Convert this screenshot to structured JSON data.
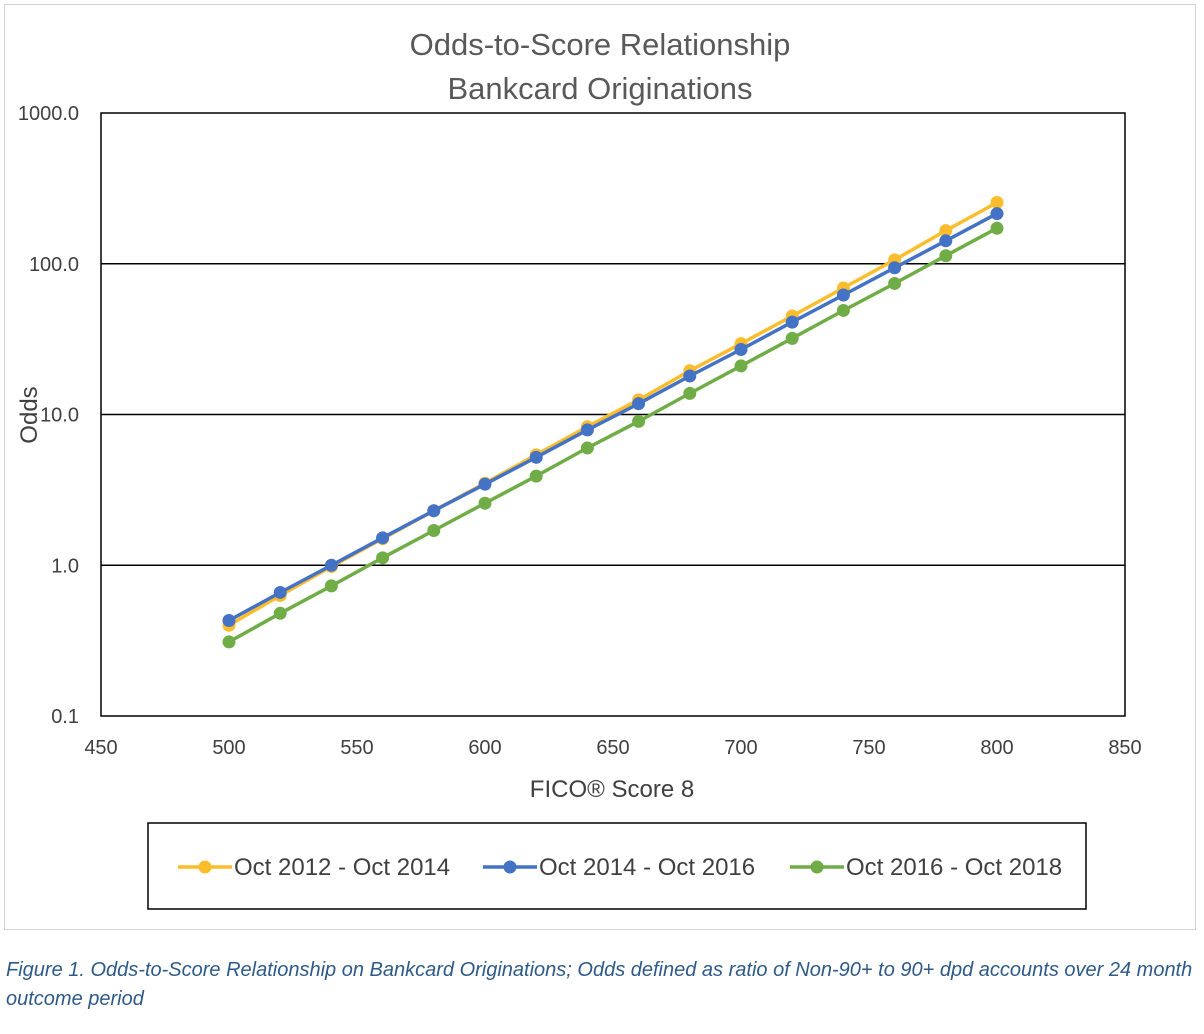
{
  "chart_data": {
    "type": "line",
    "title": [
      "Odds-to-Score Relationship",
      "Bankcard Originations"
    ],
    "xlabel": "FICO® Score 8",
    "ylabel": "Odds",
    "xlim": [
      450,
      850
    ],
    "xticks": [
      450,
      500,
      550,
      600,
      650,
      700,
      750,
      800,
      850
    ],
    "yscale": "log",
    "ylim": [
      0.1,
      1000
    ],
    "yticks": [
      0.1,
      1,
      10,
      100,
      1000
    ],
    "ytick_labels": [
      "0.1",
      "1.0",
      "10.0",
      "100.0",
      "1000.0"
    ],
    "grid": "horizontal major gridlines",
    "legend_position": "bottom",
    "x": [
      500,
      520,
      540,
      560,
      580,
      600,
      620,
      640,
      660,
      680,
      700,
      720,
      740,
      760,
      780,
      800
    ],
    "series": [
      {
        "name": "Oct 2012 - Oct 2014",
        "color": "#fbbd2c",
        "values": [
          0.4,
          0.63,
          0.98,
          1.5,
          2.3,
          3.5,
          5.4,
          8.3,
          12.5,
          19.5,
          29.5,
          45.0,
          69.0,
          106,
          166,
          255
        ]
      },
      {
        "name": "Oct 2014 - Oct 2016",
        "color": "#4472c4",
        "values": [
          0.43,
          0.66,
          1.0,
          1.52,
          2.3,
          3.45,
          5.2,
          7.9,
          11.8,
          18.0,
          27.0,
          41.0,
          62.0,
          94.0,
          142,
          215
        ]
      },
      {
        "name": "Oct 2016 - Oct 2018",
        "color": "#70ad47",
        "values": [
          0.31,
          0.48,
          0.73,
          1.12,
          1.7,
          2.58,
          3.9,
          6.0,
          9.0,
          13.8,
          21.0,
          32.0,
          49.0,
          74.0,
          113,
          172
        ]
      }
    ]
  },
  "caption": "Figure 1. Odds-to-Score Relationship on Bankcard Originations; Odds defined as ratio of Non-90+ to 90+ dpd accounts over 24 month outcome period"
}
